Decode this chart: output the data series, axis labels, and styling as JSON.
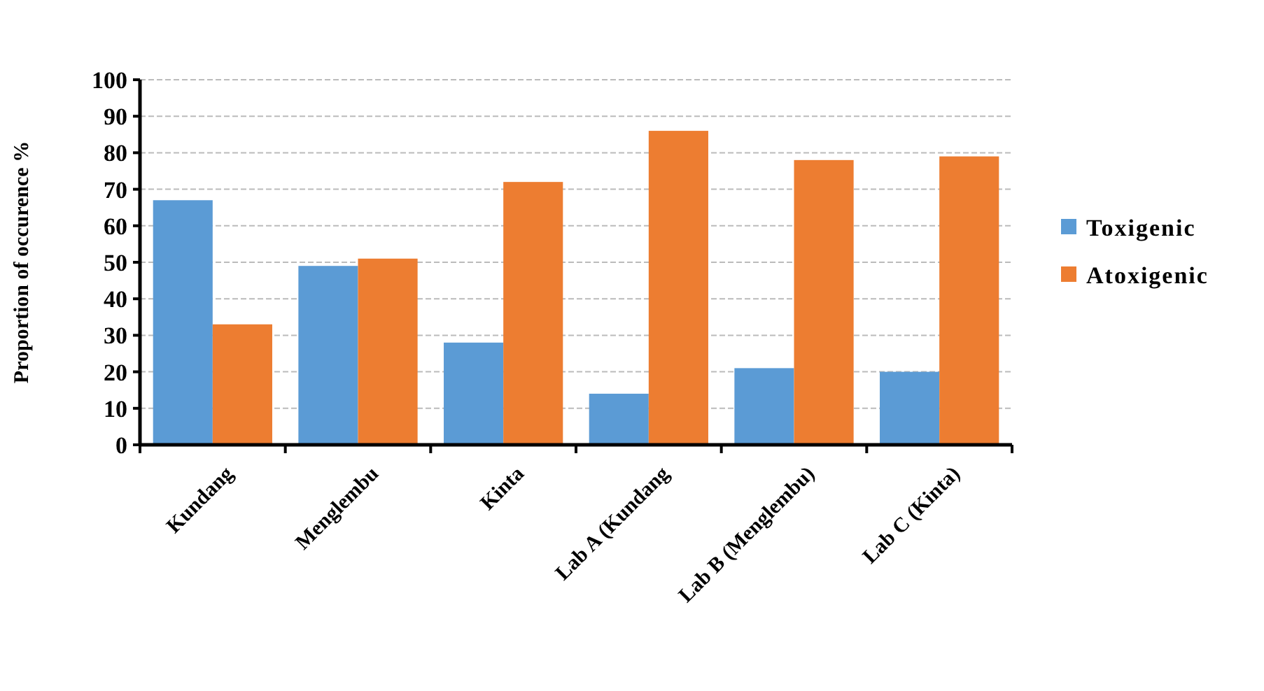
{
  "chart_data": {
    "type": "bar",
    "ylabel": "Proportion of occurence %",
    "categories": [
      "Kundang",
      "Menglembu",
      "Kinta",
      "Lab A (Kundang",
      "Lab B (Menglembu)",
      "Lab C (Kinta)"
    ],
    "series": [
      {
        "name": "Toxigenic",
        "color": "#5b9bd5",
        "values": [
          67,
          49,
          28,
          14,
          21,
          20
        ]
      },
      {
        "name": "Atoxigenic",
        "color": "#ed7d31",
        "values": [
          33,
          51,
          72,
          86,
          78,
          79
        ]
      }
    ],
    "ylim": [
      0,
      100
    ],
    "yticks": [
      0,
      10,
      20,
      30,
      40,
      50,
      60,
      70,
      80,
      90,
      100
    ],
    "grid": "y",
    "legend": "right"
  }
}
